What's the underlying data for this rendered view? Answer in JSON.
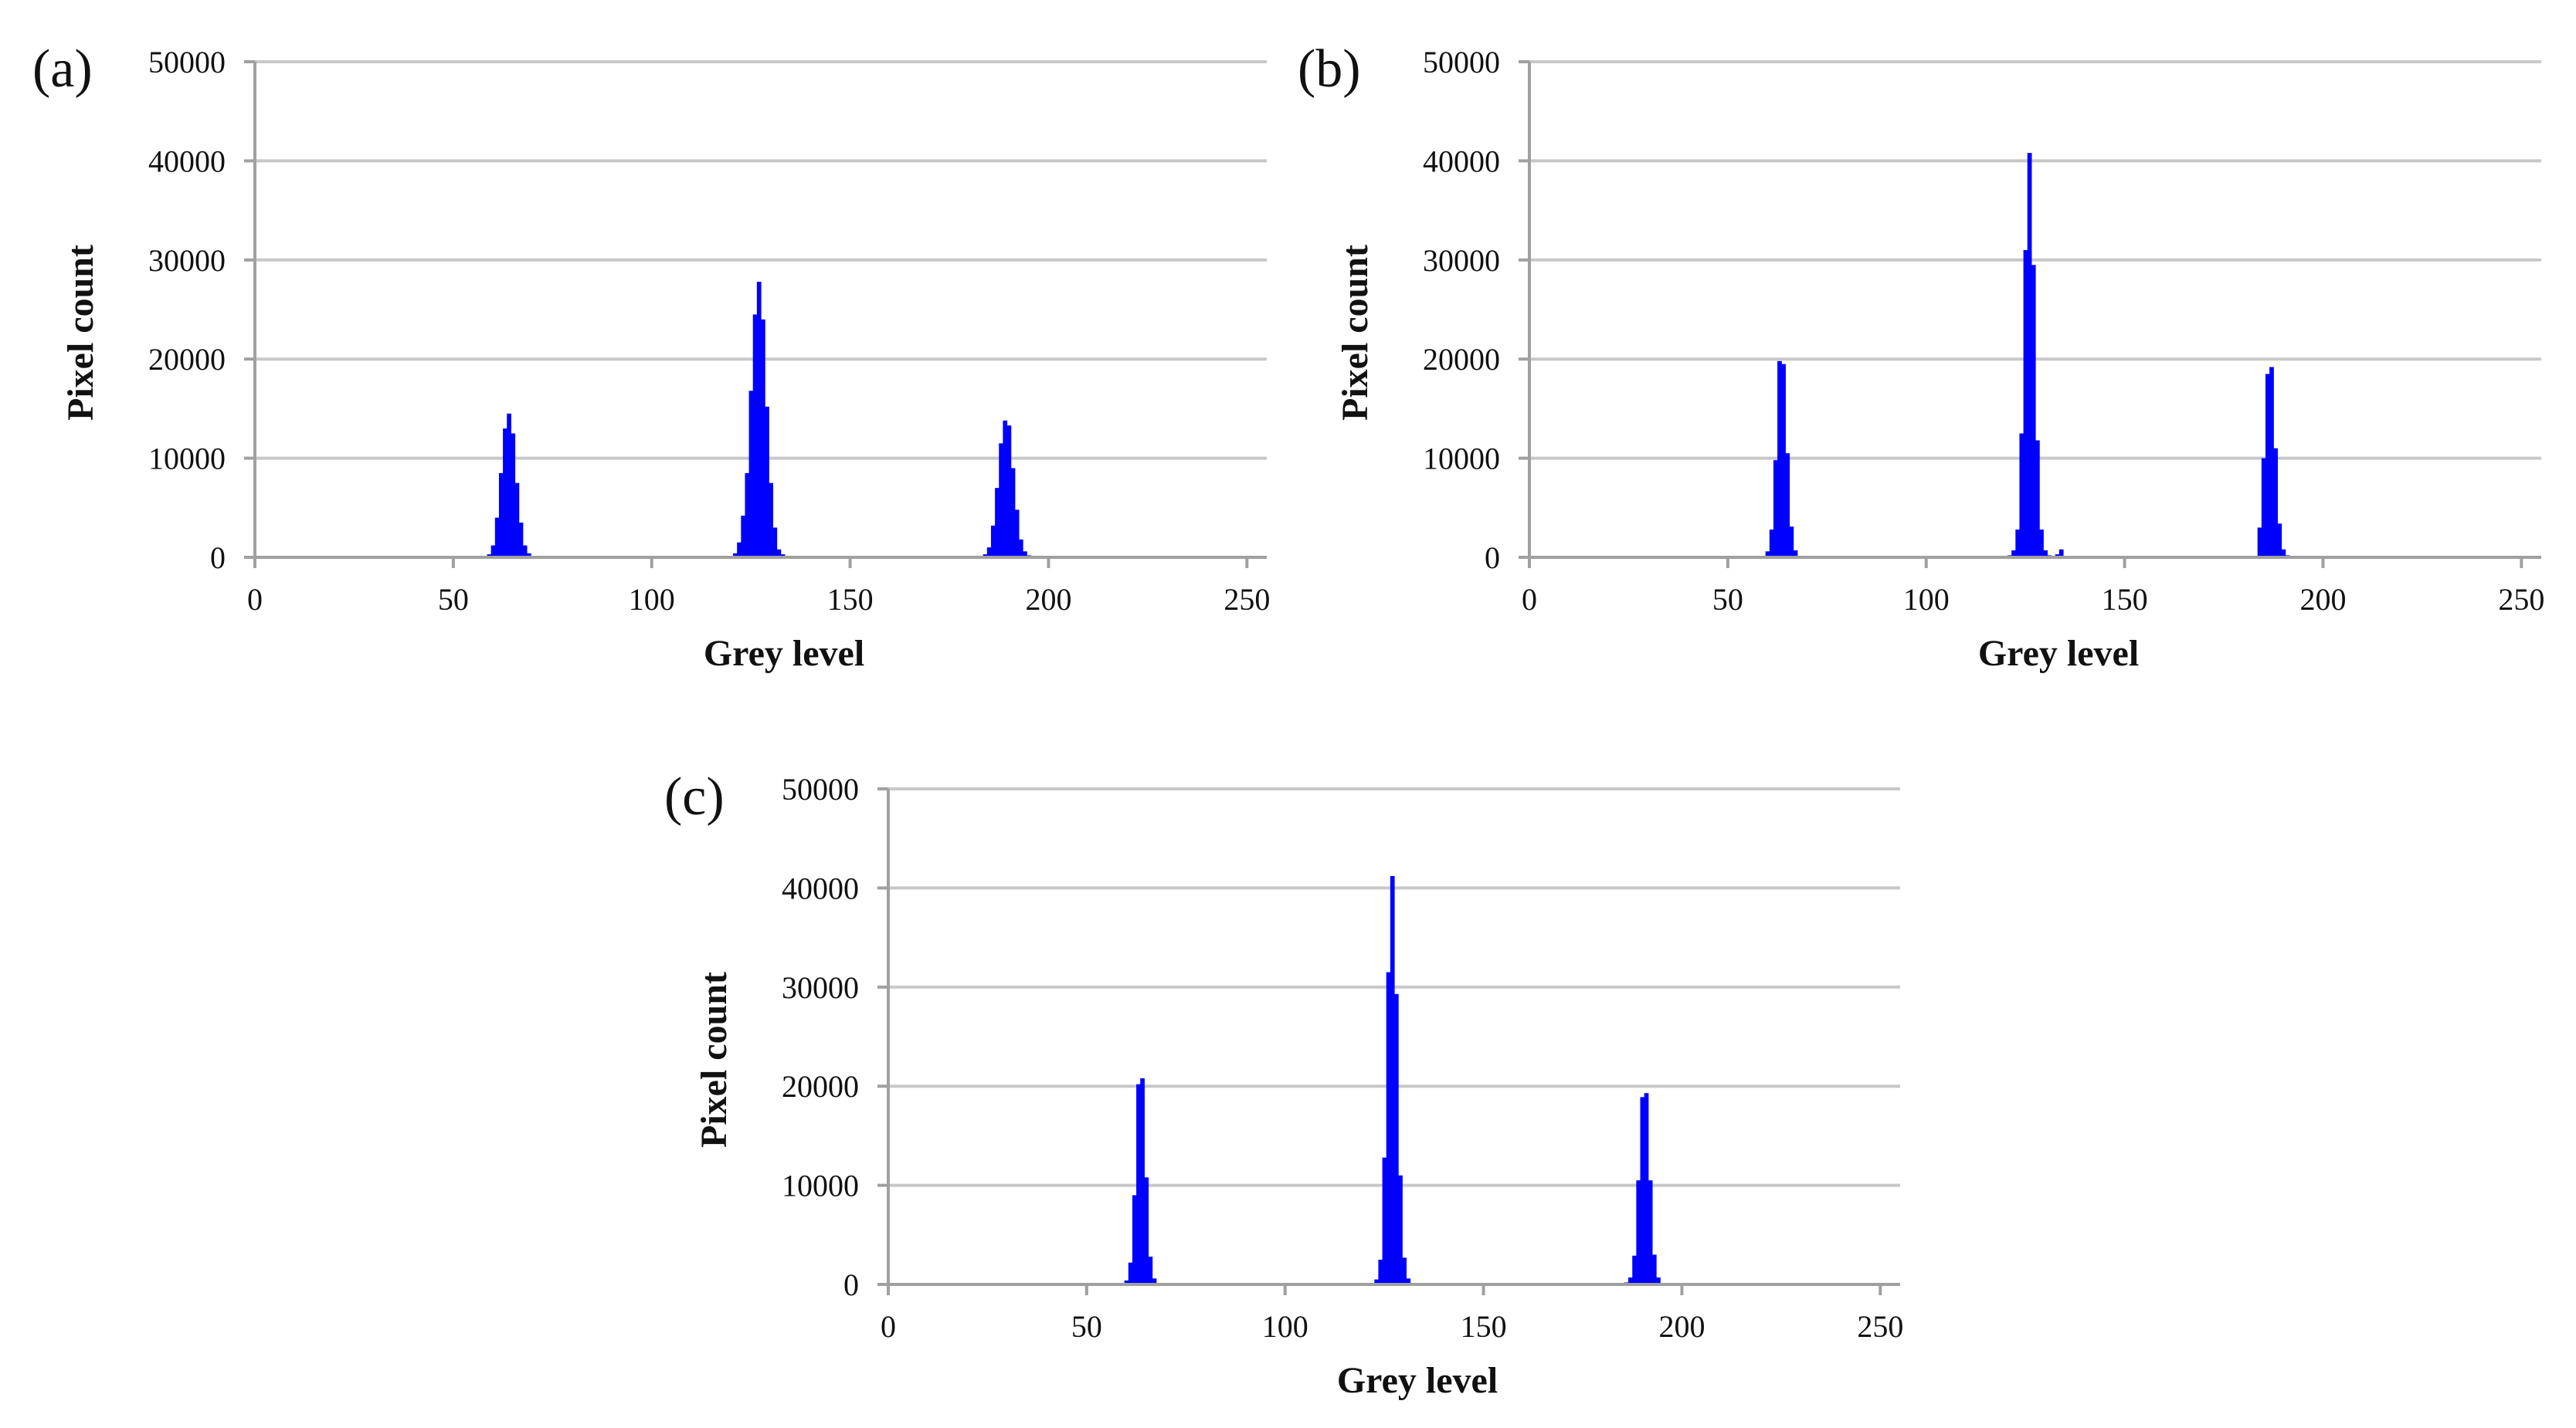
{
  "figure": {
    "background": "#ffffff",
    "bar_color": "#0000ff"
  },
  "chart_data": [
    {
      "panel_label": "(a)",
      "type": "bar",
      "xlabel": "Grey level",
      "ylabel": "Pixel count",
      "xlim": [
        0,
        255
      ],
      "ylim": [
        0,
        50000
      ],
      "xticks": [
        "0",
        "50",
        "100",
        "150",
        "200",
        "250"
      ],
      "yticks": [
        "0",
        "10000",
        "20000",
        "30000",
        "40000",
        "50000"
      ],
      "grid": true,
      "x": [
        58,
        59,
        60,
        61,
        62,
        63,
        64,
        65,
        66,
        67,
        68,
        69,
        70,
        71,
        72,
        120,
        121,
        122,
        123,
        124,
        125,
        126,
        127,
        128,
        129,
        130,
        131,
        132,
        133,
        134,
        135,
        183,
        184,
        185,
        186,
        187,
        188,
        189,
        190,
        191,
        192,
        193,
        194,
        195,
        196,
        197
      ],
      "values": [
        100,
        300,
        1200,
        4000,
        8500,
        13000,
        14500,
        12500,
        7500,
        3500,
        1200,
        400,
        150,
        100,
        60,
        150,
        400,
        1500,
        4200,
        8500,
        16800,
        24500,
        27800,
        24000,
        15200,
        7500,
        3000,
        800,
        300,
        100,
        60,
        100,
        300,
        1000,
        3200,
        7000,
        11500,
        13800,
        13300,
        9000,
        4800,
        1800,
        600,
        200,
        80,
        50
      ]
    },
    {
      "panel_label": "(b)",
      "type": "bar",
      "xlabel": "Grey level",
      "ylabel": "Pixel count",
      "xlim": [
        0,
        255
      ],
      "ylim": [
        0,
        50000
      ],
      "xticks": [
        "0",
        "50",
        "100",
        "150",
        "200",
        "250"
      ],
      "yticks": [
        "0",
        "10000",
        "20000",
        "30000",
        "40000",
        "50000"
      ],
      "grid": true,
      "x": [
        59,
        60,
        61,
        62,
        63,
        64,
        65,
        66,
        67,
        68,
        69,
        70,
        121,
        122,
        123,
        124,
        125,
        126,
        127,
        128,
        129,
        130,
        131,
        132,
        133,
        134,
        184,
        185,
        186,
        187,
        188,
        189,
        190,
        191,
        192,
        193,
        194,
        195,
        196
      ],
      "values": [
        100,
        600,
        2800,
        9800,
        19800,
        19500,
        10500,
        3100,
        700,
        150,
        60,
        40,
        200,
        700,
        2800,
        12500,
        31000,
        40800,
        29500,
        11800,
        2800,
        700,
        200,
        80,
        300,
        800,
        3000,
        10000,
        18500,
        19200,
        11000,
        3400,
        800,
        200,
        60,
        40,
        30,
        20,
        10
      ]
    },
    {
      "panel_label": "(c)",
      "type": "bar",
      "xlabel": "Grey level",
      "ylabel": "Pixel count",
      "xlim": [
        0,
        255
      ],
      "ylim": [
        0,
        50000
      ],
      "xticks": [
        "0",
        "50",
        "100",
        "150",
        "200",
        "250"
      ],
      "yticks": [
        "0",
        "10000",
        "20000",
        "30000",
        "40000",
        "50000"
      ],
      "grid": true,
      "x": [
        59,
        60,
        61,
        62,
        63,
        64,
        65,
        66,
        67,
        68,
        69,
        70,
        122,
        123,
        124,
        125,
        126,
        127,
        128,
        129,
        130,
        131,
        132,
        133,
        186,
        187,
        188,
        189,
        190,
        191,
        192,
        193,
        194,
        195,
        196,
        197
      ],
      "values": [
        60,
        400,
        2200,
        9000,
        20200,
        20800,
        10800,
        2800,
        600,
        150,
        60,
        30,
        150,
        500,
        2500,
        12800,
        31500,
        41200,
        29300,
        11000,
        2700,
        600,
        150,
        60,
        200,
        700,
        2900,
        10500,
        18900,
        19300,
        10500,
        3000,
        700,
        150,
        60,
        30
      ]
    }
  ]
}
